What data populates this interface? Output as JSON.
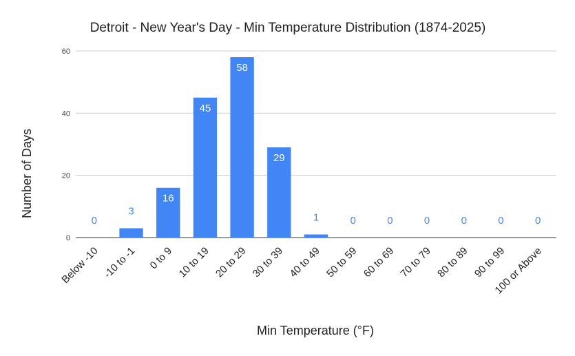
{
  "chart_data": {
    "type": "bar",
    "title": "Detroit - New Year's Day - Min Temperature Distribution (1874-2025)",
    "xlabel": "Min Temperature (°F)",
    "ylabel": "Number of Days",
    "categories": [
      "Below -10",
      "-10 to -1",
      "0 to 9",
      "10 to 19",
      "20 to 29",
      "30 to 39",
      "40 to 49",
      "50 to 59",
      "60 to 69",
      "70 to 79",
      "80 to 89",
      "90 to 99",
      "100 or Above"
    ],
    "values": [
      0,
      3,
      16,
      45,
      58,
      29,
      1,
      0,
      0,
      0,
      0,
      0,
      0
    ],
    "ylim": [
      0,
      60
    ],
    "yticks": [
      0,
      20,
      40,
      60
    ],
    "grid": true,
    "legend": "none",
    "colors": {
      "bar": "#4285f4",
      "label_outside": "#4a86e8"
    }
  }
}
